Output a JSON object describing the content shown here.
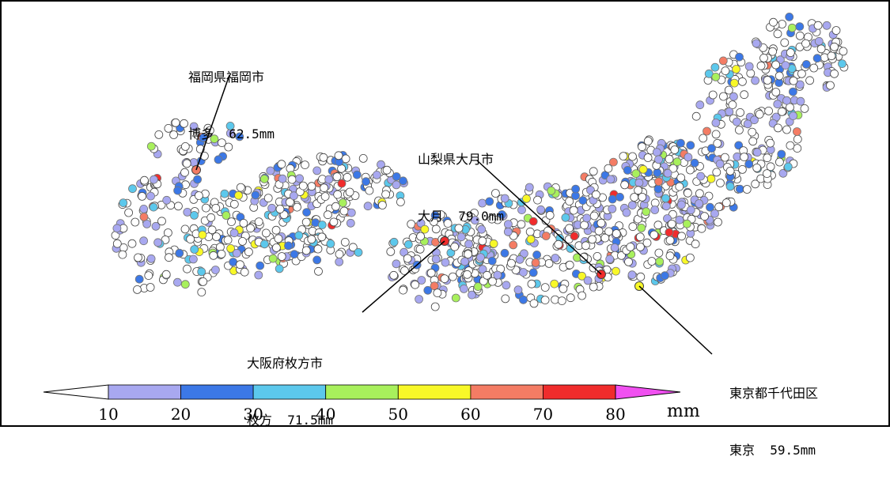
{
  "callouts": [
    {
      "place": "福岡県福岡市",
      "reading": "博多  62.5mm"
    },
    {
      "place": "山梨県大月市",
      "reading": "大月  79.0mm"
    },
    {
      "place": "大阪府枚方市",
      "reading": "枚方  71.5mm"
    },
    {
      "place": "東京都千代田区",
      "reading": "東京  59.5mm"
    }
  ],
  "legend": {
    "unit": "mm",
    "ticks": [
      "10",
      "20",
      "30",
      "40",
      "50",
      "60",
      "70",
      "80"
    ],
    "bins": [
      {
        "range": [
          10,
          20
        ],
        "color": "#a8a8f0"
      },
      {
        "range": [
          20,
          30
        ],
        "color": "#3c78e6"
      },
      {
        "range": [
          30,
          40
        ],
        "color": "#5cc8ec"
      },
      {
        "range": [
          40,
          50
        ],
        "color": "#a8f05c"
      },
      {
        "range": [
          50,
          60
        ],
        "color": "#f8f828"
      },
      {
        "range": [
          60,
          70
        ],
        "color": "#f47c64"
      },
      {
        "range": [
          70,
          80
        ],
        "color": "#f02c2c"
      }
    ],
    "below_color": "#ffffff",
    "above_color": "#f050f0"
  },
  "colors": {
    "empty_station": "#ffffff",
    "station_stroke": "#444444",
    "border": "#000000"
  }
}
